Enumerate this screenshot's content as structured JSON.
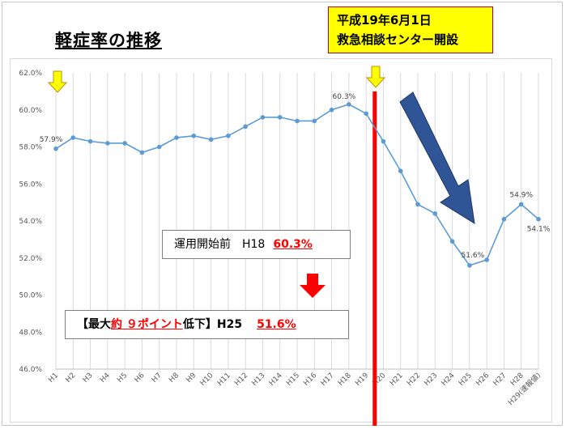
{
  "title": "軽症率の推移",
  "callout_top": {
    "line1": "平成19年6月1日",
    "line2": "救急相談センター開設"
  },
  "box_before": {
    "label": "運用開始前　H18",
    "value": "60.3%"
  },
  "box_after": {
    "prefix": "【最大",
    "highlight": "約 ９ポイント",
    "suffix": "低下】H25",
    "value": "51.6%"
  },
  "chart_data": {
    "type": "line",
    "categories": [
      "H1",
      "H2",
      "H3",
      "H4",
      "H5",
      "H6",
      "H7",
      "H8",
      "H9",
      "H10",
      "H11",
      "H12",
      "H13",
      "H14",
      "H15",
      "H16",
      "H17",
      "H18",
      "H19",
      "H20",
      "H21",
      "H22",
      "H23",
      "H24",
      "H25",
      "H26",
      "H27",
      "H28",
      "H29(速報値)"
    ],
    "series": [
      {
        "values": [
          57.9,
          58.5,
          58.3,
          58.2,
          58.2,
          57.7,
          58.0,
          58.5,
          58.6,
          58.4,
          58.6,
          59.1,
          59.6,
          59.6,
          59.4,
          59.4,
          60.0,
          60.3,
          59.8,
          58.3,
          56.7,
          54.9,
          54.4,
          52.9,
          51.6,
          51.9,
          54.1,
          54.9,
          54.1
        ],
        "color": "#5b9bd5"
      }
    ],
    "ylim": [
      46,
      62
    ],
    "y_ticks": [
      "46.0%",
      "48.0%",
      "50.0%",
      "52.0%",
      "54.0%",
      "56.0%",
      "58.0%",
      "60.0%",
      "62.0%"
    ],
    "data_labels": [
      {
        "index": 0,
        "text": "57.9%"
      },
      {
        "index": 17,
        "text": "60.3%"
      },
      {
        "index": 24,
        "text": "51.6%"
      },
      {
        "index": 27,
        "text": "54.9%"
      },
      {
        "index": 28,
        "text": "54.1%"
      }
    ],
    "grid": "vertical",
    "marker_line_after_index": 18,
    "colors": {
      "line": "#5b9bd5",
      "marker_line": "#ff0000",
      "arrow_down": "#2f5597",
      "arrow_yellow": "#ffff00",
      "arrow_red": "#ff0000"
    }
  }
}
